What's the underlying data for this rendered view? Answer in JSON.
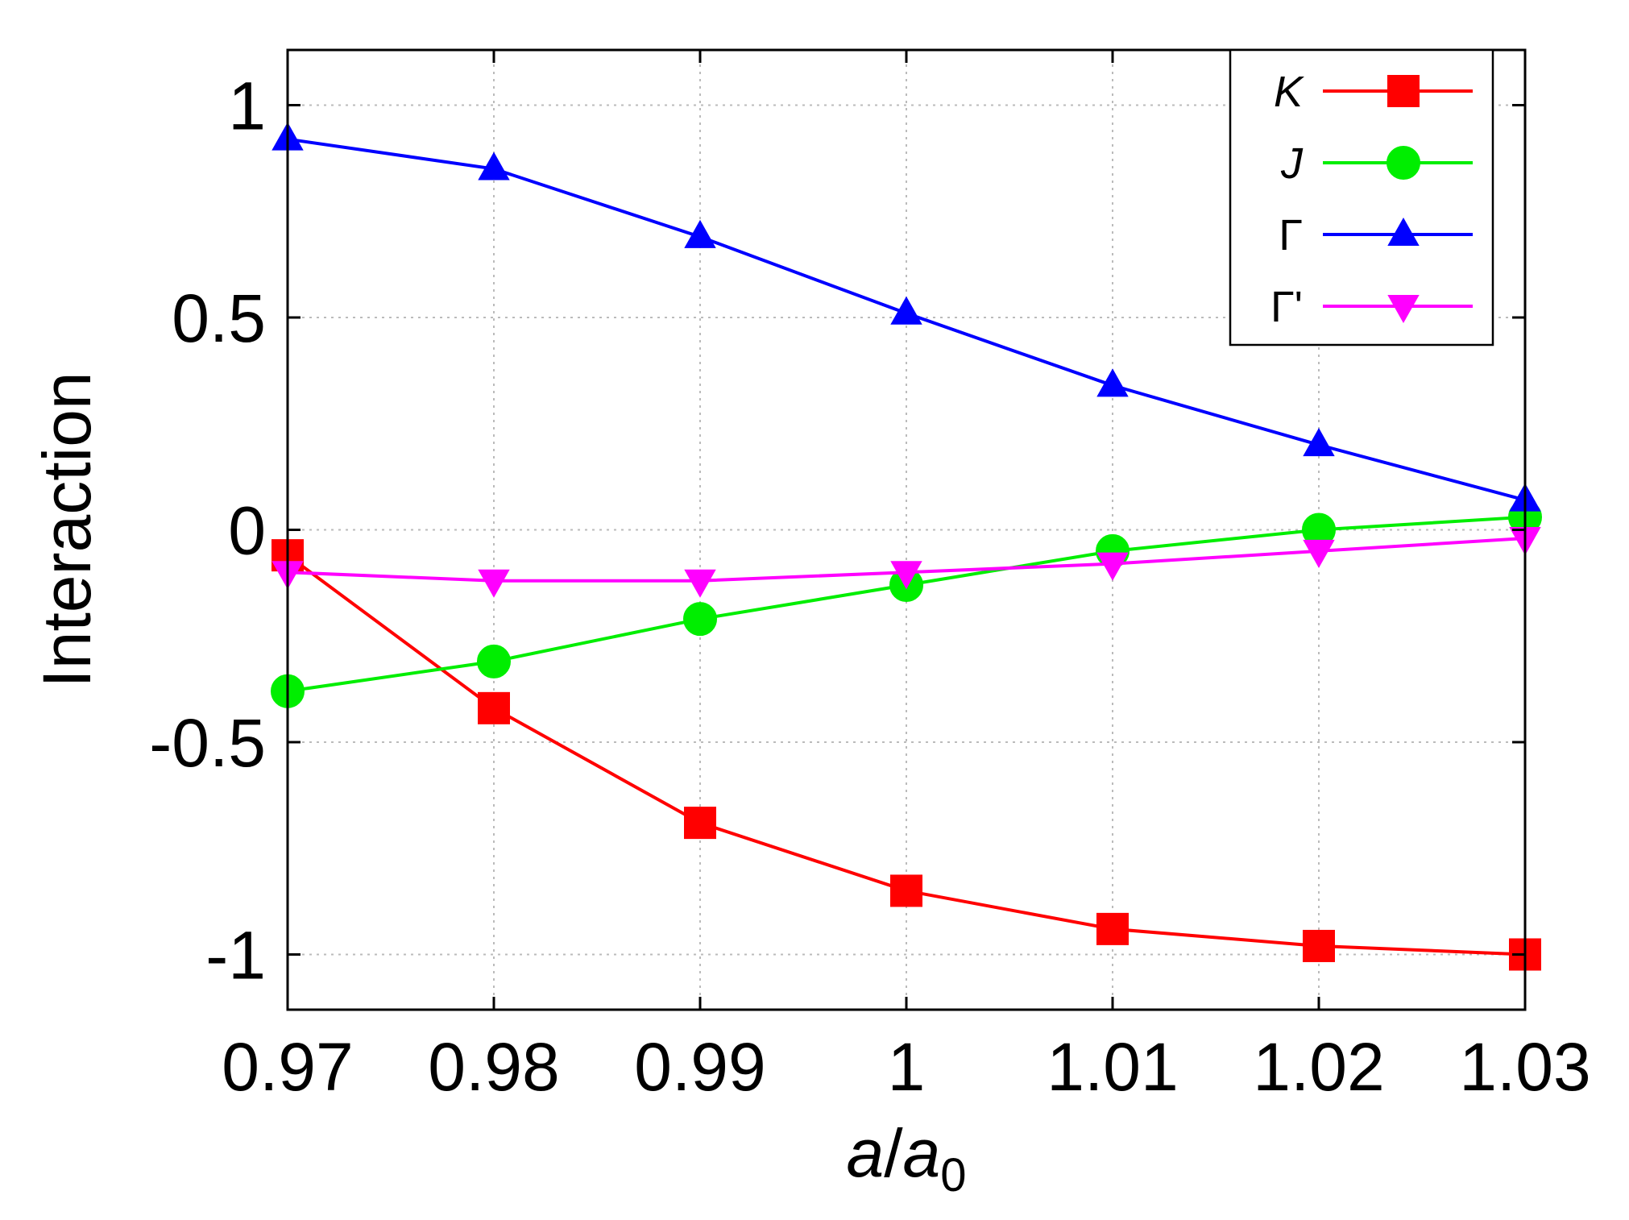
{
  "chart_data": {
    "type": "line",
    "title": "",
    "xlabel": "a/a0",
    "ylabel": "Interaction",
    "x": [
      0.97,
      0.98,
      0.99,
      1.0,
      1.01,
      1.02,
      1.03
    ],
    "xlim": [
      0.97,
      1.03
    ],
    "ylim": [
      -1.13,
      1.13
    ],
    "xticks": [
      0.97,
      0.98,
      0.99,
      1.0,
      1.01,
      1.02,
      1.03
    ],
    "xtick_labels": [
      "0.97",
      "0.98",
      "0.99",
      "1",
      "1.01",
      "1.02",
      "1.03"
    ],
    "yticks": [
      1,
      0.5,
      0,
      -0.5,
      -1
    ],
    "ytick_labels": [
      "1",
      "0.5",
      "0",
      "-0.5",
      "-1"
    ],
    "grid": true,
    "legend_position": "top-right",
    "series": [
      {
        "name": "K",
        "italic": true,
        "color": "#ff0000",
        "marker": "square",
        "values": [
          -0.06,
          -0.42,
          -0.69,
          -0.85,
          -0.94,
          -0.98,
          -1.0
        ]
      },
      {
        "name": "J",
        "italic": true,
        "color": "#00ee00",
        "marker": "circle",
        "values": [
          -0.38,
          -0.31,
          -0.21,
          -0.13,
          -0.05,
          0.0,
          0.03
        ]
      },
      {
        "name": "Γ",
        "italic": false,
        "color": "#0000ff",
        "marker": "triangle-up",
        "values": [
          0.92,
          0.85,
          0.69,
          0.51,
          0.34,
          0.2,
          0.07
        ]
      },
      {
        "name": "Γ'",
        "italic": false,
        "color": "#ff00ff",
        "marker": "triangle-down",
        "values": [
          -0.1,
          -0.12,
          -0.12,
          -0.1,
          -0.08,
          -0.05,
          -0.02
        ]
      }
    ]
  }
}
